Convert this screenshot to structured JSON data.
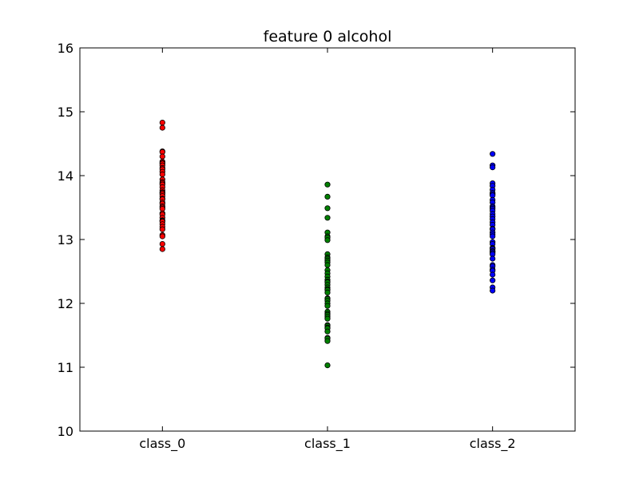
{
  "chart_data": {
    "type": "scatter",
    "title": "feature 0 alcohol",
    "xlabel": "",
    "ylabel": "",
    "categories": [
      "class_0",
      "class_1",
      "class_2"
    ],
    "ylim": [
      10,
      16
    ],
    "y_ticks": [
      "10",
      "11",
      "12",
      "13",
      "14",
      "15",
      "16"
    ],
    "grid": false,
    "legend": "none",
    "series": [
      {
        "category": "class_0",
        "color": "#ff0000",
        "values": [
          14.83,
          14.75,
          14.38,
          14.37,
          14.3,
          14.22,
          14.2,
          14.19,
          14.16,
          14.12,
          14.1,
          14.06,
          14.02,
          13.94,
          13.9,
          13.88,
          13.86,
          13.82,
          13.77,
          13.74,
          13.73,
          13.71,
          13.68,
          13.64,
          13.63,
          13.58,
          13.56,
          13.52,
          13.5,
          13.48,
          13.41,
          13.39,
          13.34,
          13.3,
          13.29,
          13.28,
          13.24,
          13.2,
          13.16,
          13.07,
          13.05,
          12.93,
          12.85
        ]
      },
      {
        "category": "class_1",
        "color": "#008000",
        "values": [
          13.86,
          13.67,
          13.49,
          13.34,
          13.11,
          13.05,
          13.03,
          12.99,
          12.77,
          12.72,
          12.7,
          12.67,
          12.64,
          12.6,
          12.52,
          12.47,
          12.42,
          12.37,
          12.34,
          12.33,
          12.29,
          12.25,
          12.22,
          12.21,
          12.17,
          12.08,
          12.07,
          12.04,
          12.0,
          11.96,
          11.87,
          11.84,
          11.82,
          11.79,
          11.76,
          11.66,
          11.65,
          11.62,
          11.61,
          11.56,
          11.46,
          11.45,
          11.41,
          11.03
        ]
      },
      {
        "category": "class_2",
        "color": "#0000ff",
        "values": [
          14.34,
          14.16,
          14.13,
          13.88,
          13.84,
          13.78,
          13.73,
          13.71,
          13.69,
          13.62,
          13.58,
          13.52,
          13.5,
          13.48,
          13.45,
          13.4,
          13.36,
          13.32,
          13.27,
          13.23,
          13.17,
          13.16,
          13.11,
          13.08,
          13.05,
          12.96,
          12.93,
          12.87,
          12.86,
          12.85,
          12.82,
          12.81,
          12.79,
          12.77,
          12.7,
          12.6,
          12.58,
          12.53,
          12.51,
          12.45,
          12.36,
          12.25,
          12.2
        ]
      }
    ]
  }
}
